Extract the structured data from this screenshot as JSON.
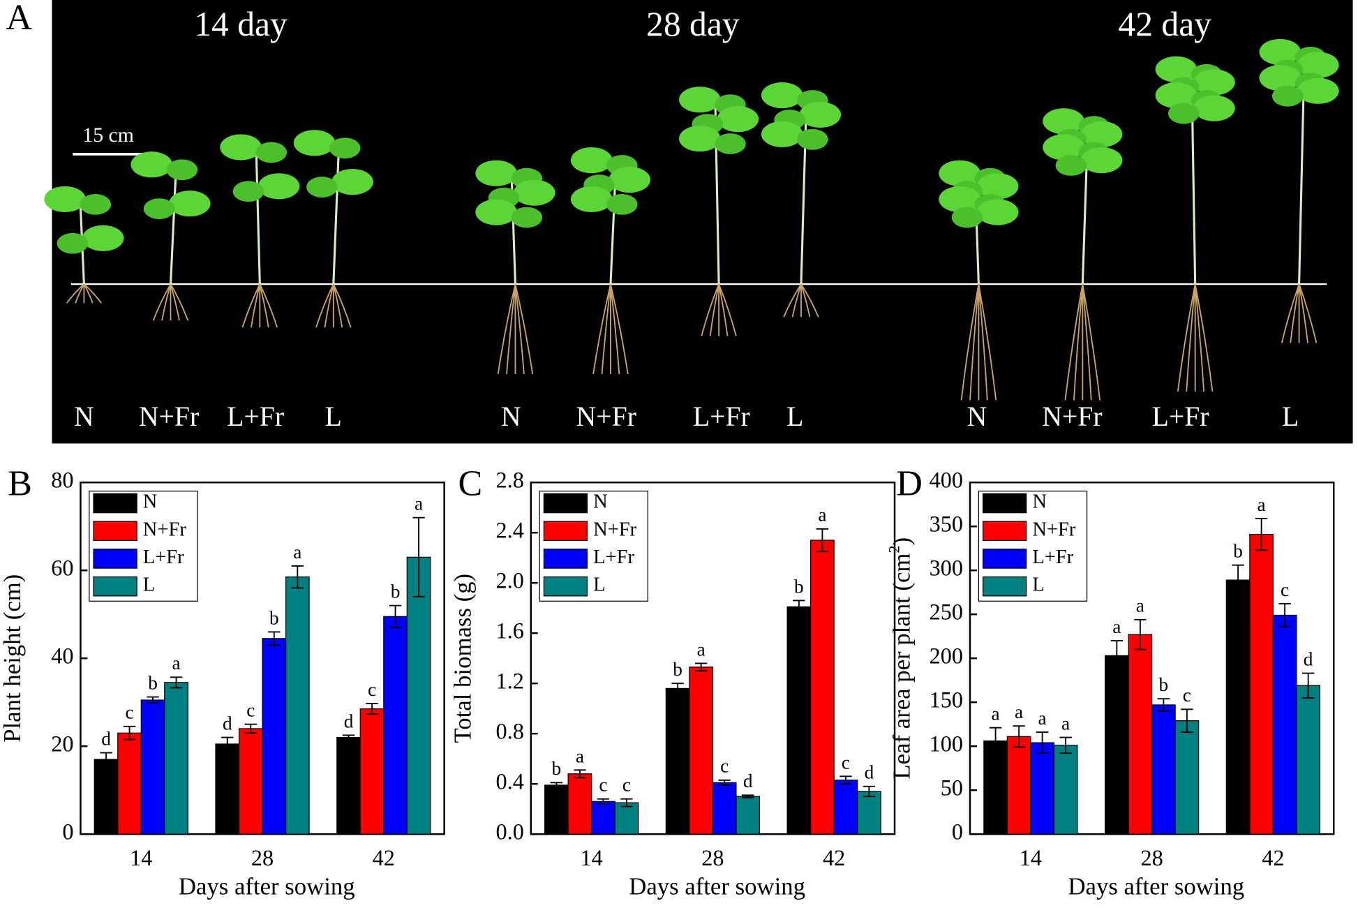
{
  "photo": {
    "label": "A",
    "scale_bar": "15 cm",
    "groups": [
      {
        "title": "14 day",
        "treatments": [
          "N",
          "N+Fr",
          "L+Fr",
          "L"
        ]
      },
      {
        "title": "28 day",
        "treatments": [
          "N",
          "N+Fr",
          "L+Fr",
          "L"
        ]
      },
      {
        "title": "42 day",
        "treatments": [
          "N",
          "N+Fr",
          "L+Fr",
          "L"
        ]
      }
    ]
  },
  "chart_data": [
    {
      "type": "bar",
      "panel": "B",
      "y_label": "Plant height (cm)",
      "x_label": "Days after sowing",
      "categories": [
        "14",
        "28",
        "42"
      ],
      "ylim": [
        0,
        80
      ],
      "yticks": [
        0,
        20,
        40,
        60,
        80
      ],
      "series": [
        {
          "name": "N",
          "color": "#000000",
          "values": [
            17,
            20.5,
            22
          ],
          "errors": [
            1.5,
            1.5,
            0.5
          ],
          "annotations": [
            "d",
            "d",
            "d"
          ]
        },
        {
          "name": "N+Fr",
          "color": "#ff0000",
          "values": [
            23,
            24,
            28.5
          ],
          "errors": [
            1.5,
            1,
            1.2
          ],
          "annotations": [
            "c",
            "c",
            "c"
          ]
        },
        {
          "name": "L+Fr",
          "color": "#0000ff",
          "values": [
            30.5,
            44.5,
            49.5
          ],
          "errors": [
            0.7,
            1.5,
            2.5
          ],
          "annotations": [
            "b",
            "b",
            "b"
          ]
        },
        {
          "name": "L",
          "color": "#008080",
          "values": [
            34.5,
            58.5,
            63
          ],
          "errors": [
            1.2,
            2.5,
            9
          ],
          "annotations": [
            "a",
            "a",
            "a"
          ]
        }
      ]
    },
    {
      "type": "bar",
      "panel": "C",
      "y_label": "Total biomass (g)",
      "x_label": "Days after sowing",
      "categories": [
        "14",
        "28",
        "42"
      ],
      "ylim": [
        0,
        2.8
      ],
      "yticks": [
        {
          "value": 0,
          "label": "0.0"
        },
        0.4,
        0.8,
        1.2,
        1.6,
        {
          "value": 2,
          "label": "2.0"
        },
        2.4,
        2.8
      ],
      "series": [
        {
          "name": "N",
          "color": "#000000",
          "values": [
            0.39,
            1.16,
            1.81
          ],
          "errors": [
            0.02,
            0.04,
            0.05
          ],
          "annotations": [
            "b",
            "b",
            "b"
          ]
        },
        {
          "name": "N+Fr",
          "color": "#ff0000",
          "values": [
            0.48,
            1.33,
            2.34
          ],
          "errors": [
            0.03,
            0.03,
            0.09
          ],
          "annotations": [
            "a",
            "a",
            "a"
          ]
        },
        {
          "name": "L+Fr",
          "color": "#0000ff",
          "values": [
            0.26,
            0.41,
            0.43
          ],
          "errors": [
            0.02,
            0.02,
            0.03
          ],
          "annotations": [
            "c",
            "c",
            "c"
          ]
        },
        {
          "name": "L",
          "color": "#008080",
          "values": [
            0.25,
            0.3,
            0.34
          ],
          "errors": [
            0.03,
            0.01,
            0.04
          ],
          "annotations": [
            "c",
            "d",
            "d"
          ]
        }
      ]
    },
    {
      "type": "bar",
      "panel": "D",
      "y_label": [
        "Leaf area per plant (cm",
        "2",
        ")"
      ],
      "x_label": "Days after sowing",
      "categories": [
        "14",
        "28",
        "42"
      ],
      "ylim": [
        0,
        400
      ],
      "yticks": [
        0,
        50,
        100,
        150,
        200,
        250,
        300,
        350,
        400
      ],
      "series": [
        {
          "name": "N",
          "color": "#000000",
          "values": [
            106,
            203,
            289
          ],
          "errors": [
            15,
            17,
            17
          ],
          "annotations": [
            "a",
            "a",
            "b"
          ]
        },
        {
          "name": "N+Fr",
          "color": "#ff0000",
          "values": [
            111,
            227,
            341
          ],
          "errors": [
            12,
            17,
            18
          ],
          "annotations": [
            "a",
            "a",
            "a"
          ]
        },
        {
          "name": "L+Fr",
          "color": "#0000ff",
          "values": [
            104,
            147,
            249
          ],
          "errors": [
            12,
            7,
            13
          ],
          "annotations": [
            "a",
            "b",
            "c"
          ]
        },
        {
          "name": "L",
          "color": "#008080",
          "values": [
            101,
            129,
            169
          ],
          "errors": [
            9,
            13,
            14
          ],
          "annotations": [
            "a",
            "c",
            "d"
          ]
        }
      ]
    }
  ]
}
